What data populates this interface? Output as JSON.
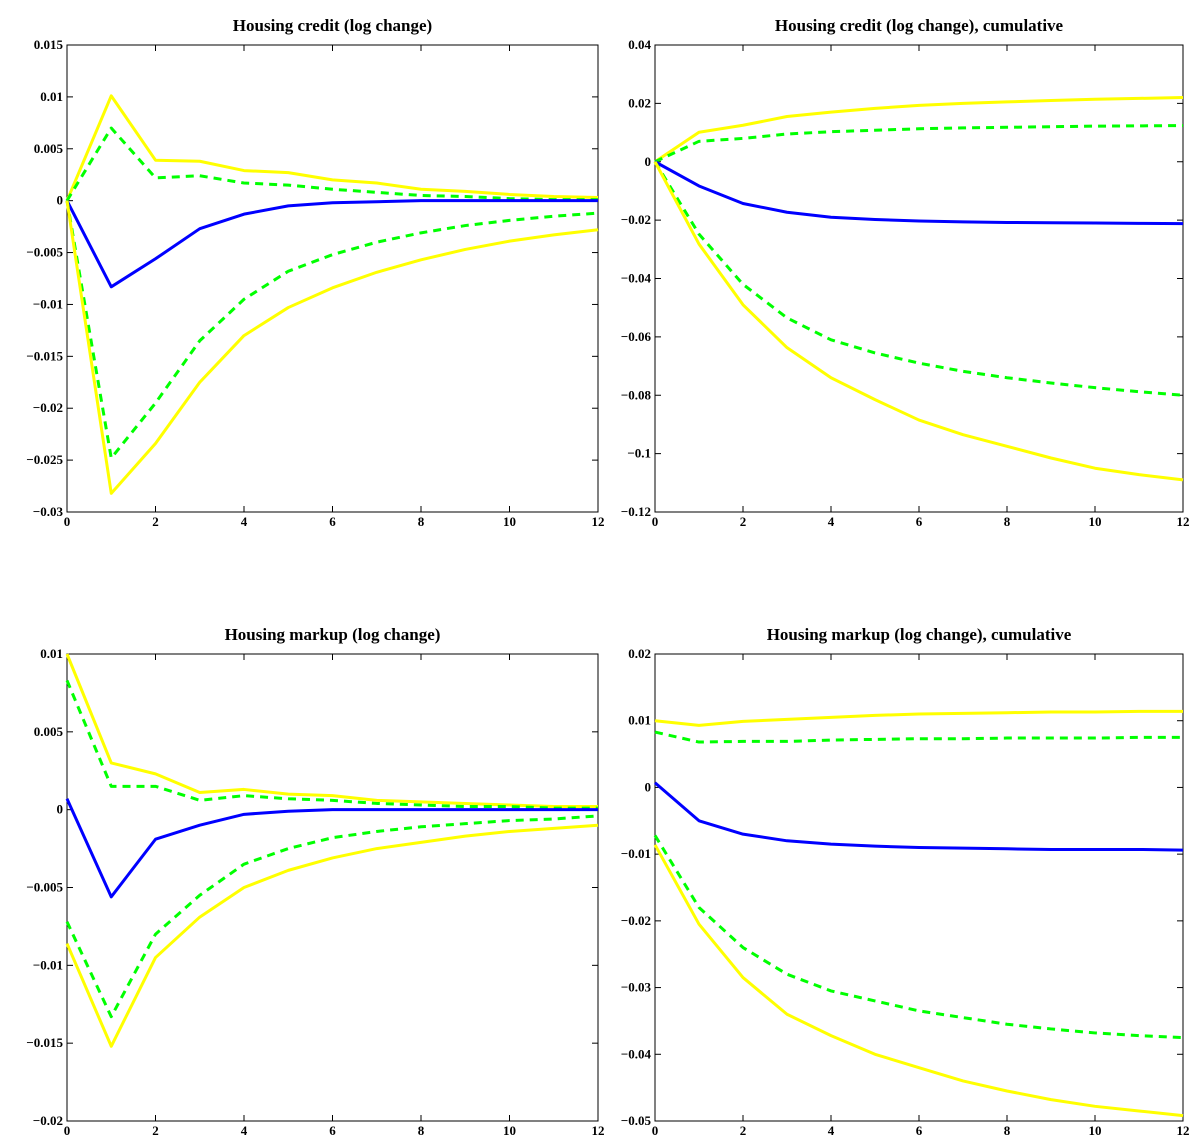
{
  "chart_data": [
    {
      "type": "line",
      "title": "Housing credit (log change)",
      "xlabel": "",
      "ylabel": "",
      "xlim": [
        0,
        12
      ],
      "ylim": [
        -0.03,
        0.015
      ],
      "xticks": [
        0,
        2,
        4,
        6,
        8,
        10,
        12
      ],
      "xtick_labels": [
        "0",
        "2",
        "4",
        "6",
        "8",
        "10",
        "12"
      ],
      "yticks": [
        -0.03,
        -0.025,
        -0.02,
        -0.015,
        -0.01,
        -0.005,
        0,
        0.005,
        0.01,
        0.015
      ],
      "ytick_labels": [
        "-0.03",
        "-0.025",
        "-0.02",
        "-0.015",
        "-0.01",
        "-0.005",
        "0",
        "0.005",
        "0.01",
        "0.015"
      ],
      "grid": false,
      "x": [
        0,
        1,
        2,
        3,
        4,
        5,
        6,
        7,
        8,
        9,
        10,
        11,
        12
      ],
      "series": [
        {
          "color": "#ffff00",
          "dash": "solid",
          "values": [
            0,
            0.0101,
            0.0039,
            0.0038,
            0.0029,
            0.0027,
            0.002,
            0.0017,
            0.0011,
            0.0009,
            0.0006,
            0.0004,
            0.0003
          ]
        },
        {
          "color": "#00ff00",
          "dash": "dashed",
          "values": [
            0,
            0.007,
            0.0022,
            0.0024,
            0.0017,
            0.0015,
            0.0011,
            0.0008,
            0.0005,
            0.0004,
            0.0002,
            0.0001,
            0.0001
          ]
        },
        {
          "color": "#0000ff",
          "dash": "solid",
          "values": [
            0,
            -0.0083,
            -0.0056,
            -0.0027,
            -0.0013,
            -0.0005,
            -0.0002,
            -0.0001,
            0,
            0,
            0,
            0,
            0
          ]
        },
        {
          "color": "#00ff00",
          "dash": "dashed",
          "values": [
            0,
            -0.0248,
            -0.0195,
            -0.0135,
            -0.0095,
            -0.0068,
            -0.0052,
            -0.004,
            -0.0031,
            -0.0024,
            -0.0019,
            -0.0015,
            -0.0012
          ]
        },
        {
          "color": "#ffff00",
          "dash": "solid",
          "values": [
            0,
            -0.0282,
            -0.0234,
            -0.0175,
            -0.013,
            -0.0103,
            -0.0084,
            -0.0069,
            -0.0057,
            -0.0047,
            -0.0039,
            -0.0033,
            -0.0028
          ]
        }
      ]
    },
    {
      "type": "line",
      "title": "Housing credit (log change), cumulative",
      "xlabel": "",
      "ylabel": "",
      "xlim": [
        0,
        12
      ],
      "ylim": [
        -0.12,
        0.04
      ],
      "xticks": [
        0,
        2,
        4,
        6,
        8,
        10,
        12
      ],
      "xtick_labels": [
        "0",
        "2",
        "4",
        "6",
        "8",
        "10",
        "12"
      ],
      "yticks": [
        -0.12,
        -0.1,
        -0.08,
        -0.06,
        -0.04,
        -0.02,
        0,
        0.02,
        0.04
      ],
      "ytick_labels": [
        "-0.12",
        "-0.1",
        "-0.08",
        "-0.06",
        "-0.04",
        "-0.02",
        "0",
        "0.02",
        "0.04"
      ],
      "grid": false,
      "x": [
        0,
        1,
        2,
        3,
        4,
        5,
        6,
        7,
        8,
        9,
        10,
        11,
        12
      ],
      "series": [
        {
          "color": "#ffff00",
          "dash": "solid",
          "values": [
            0,
            0.0101,
            0.0125,
            0.0155,
            0.017,
            0.0183,
            0.0193,
            0.02,
            0.0205,
            0.021,
            0.0214,
            0.0217,
            0.022
          ]
        },
        {
          "color": "#00ff00",
          "dash": "dashed",
          "values": [
            0,
            0.007,
            0.008,
            0.0095,
            0.0103,
            0.0108,
            0.0113,
            0.0116,
            0.0118,
            0.012,
            0.0122,
            0.0123,
            0.0124
          ]
        },
        {
          "color": "#0000ff",
          "dash": "solid",
          "values": [
            0,
            -0.0083,
            -0.0143,
            -0.0173,
            -0.019,
            -0.0198,
            -0.0203,
            -0.0206,
            -0.0208,
            -0.0209,
            -0.021,
            -0.0211,
            -0.0212
          ]
        },
        {
          "color": "#00ff00",
          "dash": "dashed",
          "values": [
            0,
            -0.0248,
            -0.042,
            -0.0535,
            -0.061,
            -0.0655,
            -0.069,
            -0.0718,
            -0.074,
            -0.0758,
            -0.0774,
            -0.0788,
            -0.08
          ]
        },
        {
          "color": "#ffff00",
          "dash": "solid",
          "values": [
            0,
            -0.0282,
            -0.049,
            -0.0637,
            -0.074,
            -0.0815,
            -0.0885,
            -0.0935,
            -0.0975,
            -0.1015,
            -0.105,
            -0.1072,
            -0.109
          ]
        }
      ]
    },
    {
      "type": "line",
      "title": "Housing markup (log change)",
      "xlabel": "",
      "ylabel": "",
      "xlim": [
        0,
        12
      ],
      "ylim": [
        -0.02,
        0.01
      ],
      "xticks": [
        0,
        2,
        4,
        6,
        8,
        10,
        12
      ],
      "xtick_labels": [
        "0",
        "2",
        "4",
        "6",
        "8",
        "10",
        "12"
      ],
      "yticks": [
        -0.02,
        -0.015,
        -0.01,
        -0.005,
        0,
        0.005,
        0.01
      ],
      "ytick_labels": [
        "-0.02",
        "-0.015",
        "-0.01",
        "-0.005",
        "0",
        "0.005",
        "0.01"
      ],
      "grid": false,
      "x": [
        0,
        1,
        2,
        3,
        4,
        5,
        6,
        7,
        8,
        9,
        10,
        11,
        12
      ],
      "series": [
        {
          "color": "#ffff00",
          "dash": "solid",
          "values": [
            0.01,
            0.003,
            0.0023,
            0.0011,
            0.0013,
            0.001,
            0.0009,
            0.0006,
            0.0005,
            0.0004,
            0.0003,
            0.0002,
            0.0002
          ]
        },
        {
          "color": "#00ff00",
          "dash": "dashed",
          "values": [
            0.0083,
            0.0015,
            0.0015,
            0.0006,
            0.0009,
            0.0007,
            0.0006,
            0.0004,
            0.0003,
            0.0002,
            0.0002,
            0.0001,
            0.0001
          ]
        },
        {
          "color": "#0000ff",
          "dash": "solid",
          "values": [
            0.0007,
            -0.0056,
            -0.0019,
            -0.001,
            -0.0003,
            -0.0001,
            0,
            0,
            0,
            0,
            0,
            0,
            0
          ]
        },
        {
          "color": "#00ff00",
          "dash": "dashed",
          "values": [
            -0.0072,
            -0.0133,
            -0.008,
            -0.0055,
            -0.0035,
            -0.0025,
            -0.0018,
            -0.0014,
            -0.0011,
            -0.0009,
            -0.0007,
            -0.0006,
            -0.0004
          ]
        },
        {
          "color": "#ffff00",
          "dash": "solid",
          "values": [
            -0.0086,
            -0.0152,
            -0.0095,
            -0.0069,
            -0.005,
            -0.0039,
            -0.0031,
            -0.0025,
            -0.0021,
            -0.0017,
            -0.0014,
            -0.0012,
            -0.001
          ]
        }
      ]
    },
    {
      "type": "line",
      "title": "Housing markup (log change), cumulative",
      "xlabel": "",
      "ylabel": "",
      "xlim": [
        0,
        12
      ],
      "ylim": [
        -0.05,
        0.02
      ],
      "xticks": [
        0,
        2,
        4,
        6,
        8,
        10,
        12
      ],
      "xtick_labels": [
        "0",
        "2",
        "4",
        "6",
        "8",
        "10",
        "12"
      ],
      "yticks": [
        -0.05,
        -0.04,
        -0.03,
        -0.02,
        -0.01,
        0,
        0.01,
        0.02
      ],
      "ytick_labels": [
        "-0.05",
        "-0.04",
        "-0.03",
        "-0.02",
        "-0.01",
        "0",
        "0.01",
        "0.02"
      ],
      "grid": false,
      "x": [
        0,
        1,
        2,
        3,
        4,
        5,
        6,
        7,
        8,
        9,
        10,
        11,
        12
      ],
      "series": [
        {
          "color": "#ffff00",
          "dash": "solid",
          "values": [
            0.01,
            0.0093,
            0.0099,
            0.0102,
            0.0105,
            0.0108,
            0.011,
            0.0111,
            0.0112,
            0.0113,
            0.0113,
            0.0114,
            0.0114
          ]
        },
        {
          "color": "#00ff00",
          "dash": "dashed",
          "values": [
            0.0083,
            0.0068,
            0.0069,
            0.0069,
            0.0071,
            0.0072,
            0.0073,
            0.0073,
            0.0074,
            0.0074,
            0.0074,
            0.0075,
            0.0075
          ]
        },
        {
          "color": "#0000ff",
          "dash": "solid",
          "values": [
            0.0007,
            -0.005,
            -0.007,
            -0.008,
            -0.0085,
            -0.0088,
            -0.009,
            -0.0091,
            -0.0092,
            -0.0093,
            -0.0093,
            -0.0093,
            -0.0094
          ]
        },
        {
          "color": "#00ff00",
          "dash": "dashed",
          "values": [
            -0.0072,
            -0.018,
            -0.024,
            -0.028,
            -0.0305,
            -0.032,
            -0.0335,
            -0.0345,
            -0.0355,
            -0.0362,
            -0.0368,
            -0.0372,
            -0.0375
          ]
        },
        {
          "color": "#ffff00",
          "dash": "solid",
          "values": [
            -0.0086,
            -0.0205,
            -0.0285,
            -0.034,
            -0.0372,
            -0.04,
            -0.042,
            -0.044,
            -0.0455,
            -0.0468,
            -0.0478,
            -0.0485,
            -0.0492
          ]
        }
      ]
    }
  ]
}
